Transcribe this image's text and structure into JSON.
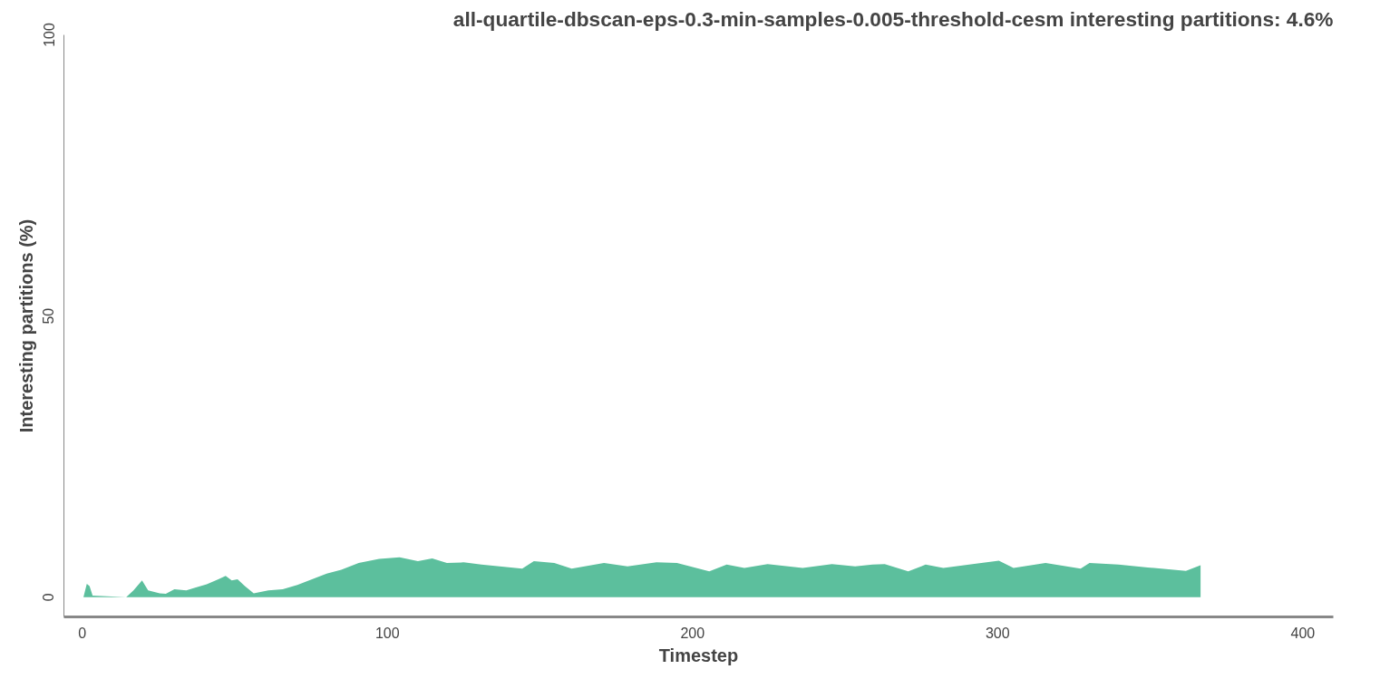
{
  "chart_data": {
    "type": "area",
    "title": "all-quartile-dbscan-eps-0.3-min-samples-0.005-threshold-cesm interesting partitions: 4.6%",
    "xlabel": "Timestep",
    "ylabel": "Interesting partitions (%)",
    "x": [
      0.4,
      1.5,
      2.4,
      3.4,
      14.4,
      16.8,
      19.6,
      21.6,
      25.4,
      27.4,
      30.2,
      34.1,
      37,
      40.8,
      44.6,
      47,
      49,
      50.9,
      53.3,
      56.2,
      61,
      65.7,
      70.5,
      75.3,
      80.1,
      84.9,
      90.6,
      97.3,
      104,
      110,
      114.7,
      119.5,
      125,
      130.8,
      144.2,
      148,
      154.7,
      160.4,
      171,
      178.7,
      188.2,
      194.9,
      205.5,
      211.2,
      217,
      224.6,
      236.1,
      245.7,
      253.3,
      259,
      263,
      270.7,
      276.4,
      282.2,
      291.8,
      300.4,
      305.2,
      315.7,
      327.2,
      330.1,
      339.6,
      349.2,
      361.7,
      366.5
    ],
    "series": [
      {
        "color": "#5cbf9d",
        "values": [
          0,
          2.4,
          2.0,
          0.3,
          0,
          1.2,
          3.0,
          1.2,
          0.7,
          0.6,
          1.4,
          1.2,
          1.7,
          2.3,
          3.2,
          3.8,
          3.0,
          3.2,
          2.0,
          0.7,
          1.2,
          1.4,
          2.2,
          3.2,
          4.2,
          4.9,
          6.1,
          6.8,
          7.1,
          6.4,
          6.9,
          6.1,
          6.2,
          5.8,
          5.1,
          6.4,
          6.1,
          5.1,
          6.1,
          5.5,
          6.2,
          6.1,
          4.6,
          5.8,
          5.2,
          5.9,
          5.2,
          5.9,
          5.5,
          5.8,
          5.9,
          4.6,
          5.8,
          5.2,
          5.9,
          6.5,
          5.2,
          6.1,
          5.1,
          6.1,
          5.8,
          5.3,
          4.7,
          5.7
        ]
      }
    ],
    "xlim": [
      -6,
      410
    ],
    "ylim": [
      -3.5,
      100
    ],
    "xticks": [
      0,
      100,
      200,
      300,
      400
    ],
    "yticks": [
      0,
      50,
      100
    ],
    "grid": false
  }
}
